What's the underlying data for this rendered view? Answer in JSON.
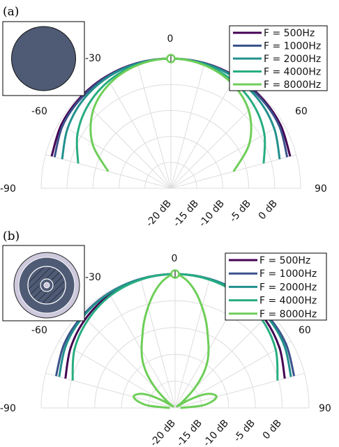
{
  "chart_data": [
    {
      "type": "polar-line",
      "panel_label": "(a)",
      "angle_ticks": [
        "-90",
        "-60",
        "-30",
        "0",
        "30",
        "60",
        "90"
      ],
      "radial_ticks": [
        "-20 dB",
        "-15 dB",
        "-10 dB",
        "-5 dB",
        "0 dB"
      ],
      "radial_range_db": [
        -25,
        0
      ],
      "angle_range_deg": [
        -90,
        90
      ],
      "inset": "solid-disc",
      "legend_position": "top-right",
      "series": [
        {
          "name": "F = 500Hz",
          "color": "#440154",
          "angle_deg": [
            -75,
            -60,
            -45,
            -30,
            -15,
            0,
            15,
            30,
            45,
            60,
            75
          ],
          "level_db": [
            -1.2,
            -0.6,
            -0.3,
            -0.1,
            0,
            0,
            0,
            -0.1,
            -0.3,
            -0.6,
            -1.2
          ]
        },
        {
          "name": "F = 1000Hz",
          "color": "#3b528b",
          "angle_deg": [
            -75,
            -60,
            -45,
            -30,
            -15,
            0,
            15,
            30,
            45,
            60,
            75
          ],
          "level_db": [
            -1.8,
            -0.9,
            -0.5,
            -0.2,
            -0.05,
            0,
            -0.05,
            -0.2,
            -0.5,
            -0.9,
            -1.8
          ]
        },
        {
          "name": "F = 2000Hz",
          "color": "#21908d",
          "angle_deg": [
            -75,
            -60,
            -45,
            -30,
            -15,
            0,
            15,
            30,
            45,
            60,
            75
          ],
          "level_db": [
            -3.3,
            -2.0,
            -1.0,
            -0.4,
            -0.1,
            0,
            -0.1,
            -0.4,
            -1.0,
            -2.0,
            -3.3
          ]
        },
        {
          "name": "F = 4000Hz",
          "color": "#27ad81",
          "angle_deg": [
            -75,
            -60,
            -45,
            -30,
            -15,
            0,
            15,
            30,
            45,
            60,
            75
          ],
          "level_db": [
            -6.5,
            -4.2,
            -2.4,
            -1.1,
            -0.3,
            0,
            -0.3,
            -1.1,
            -2.4,
            -4.2,
            -6.5
          ]
        },
        {
          "name": "F = 8000Hz",
          "color": "#6ece58",
          "angle_deg": [
            -75,
            -60,
            -45,
            -30,
            -15,
            0,
            15,
            30,
            45,
            60,
            75
          ],
          "level_db": [
            -12.5,
            -7.5,
            -3.8,
            -1.6,
            -0.4,
            0,
            -0.4,
            -1.6,
            -3.8,
            -7.5,
            -12.5
          ]
        }
      ]
    },
    {
      "type": "polar-line",
      "panel_label": "(b)",
      "angle_ticks": [
        "-90",
        "-60",
        "-30",
        "0",
        "30",
        "60",
        "90"
      ],
      "radial_ticks": [
        "-20 dB",
        "-15 dB",
        "-10 dB",
        "-5 dB",
        "0 dB"
      ],
      "radial_range_db": [
        -25,
        0
      ],
      "angle_range_deg": [
        -90,
        90
      ],
      "inset": "annular-ring",
      "legend_position": "top-right",
      "series": [
        {
          "name": "F = 500Hz",
          "color": "#440154",
          "angle_deg": [
            -75,
            -60,
            -45,
            -30,
            -15,
            0,
            15,
            30,
            45,
            60,
            75
          ],
          "level_db": [
            -3.8,
            -2.5,
            -1.4,
            -0.6,
            -0.15,
            0,
            -0.15,
            -0.6,
            -1.4,
            -2.5,
            -3.8
          ]
        },
        {
          "name": "F = 1000Hz",
          "color": "#3b528b",
          "angle_deg": [
            -75,
            -60,
            -45,
            -30,
            -15,
            0,
            15,
            30,
            45,
            60,
            75
          ],
          "level_db": [
            -2.0,
            -1.1,
            -0.6,
            -0.25,
            -0.05,
            0,
            -0.05,
            -0.25,
            -0.6,
            -1.1,
            -2.0
          ]
        },
        {
          "name": "F = 2000Hz",
          "color": "#21908d",
          "angle_deg": [
            -75,
            -60,
            -45,
            -30,
            -15,
            0,
            15,
            30,
            45,
            60,
            75
          ],
          "level_db": [
            -2.6,
            -1.5,
            -0.8,
            -0.3,
            -0.08,
            0,
            -0.08,
            -0.3,
            -0.8,
            -1.5,
            -2.6
          ]
        },
        {
          "name": "F = 4000Hz",
          "color": "#27ad81",
          "angle_deg": [
            -75,
            -60,
            -45,
            -30,
            -15,
            0,
            15,
            30,
            45,
            60,
            75
          ],
          "level_db": [
            -5.2,
            -3.3,
            -1.9,
            -0.8,
            -0.2,
            0,
            -0.2,
            -0.8,
            -1.9,
            -3.3,
            -5.2
          ]
        },
        {
          "name": "F = 8000Hz",
          "color": "#6ece58",
          "angle_deg": [
            -90,
            -85,
            -80,
            -75,
            -70,
            -65,
            -60,
            -55,
            -50,
            -45,
            -40,
            -35,
            -30,
            -25,
            -20,
            -15,
            -10,
            -5,
            0,
            5,
            10,
            15,
            20,
            25,
            30,
            35,
            40,
            45,
            50,
            55,
            60,
            65,
            70,
            75,
            80,
            85,
            90
          ],
          "level_db": [
            -24,
            -20,
            -18,
            -17,
            -17.5,
            -19,
            -22,
            -24.5,
            -23,
            -20,
            -17,
            -14.5,
            -12.5,
            -10.5,
            -8,
            -5.5,
            -3,
            -1,
            0,
            -1,
            -3,
            -5.5,
            -8,
            -10.5,
            -12.5,
            -14.5,
            -17,
            -20,
            -23,
            -24.5,
            -22,
            -19,
            -17.5,
            -17,
            -18,
            -20,
            -24
          ]
        }
      ]
    }
  ]
}
